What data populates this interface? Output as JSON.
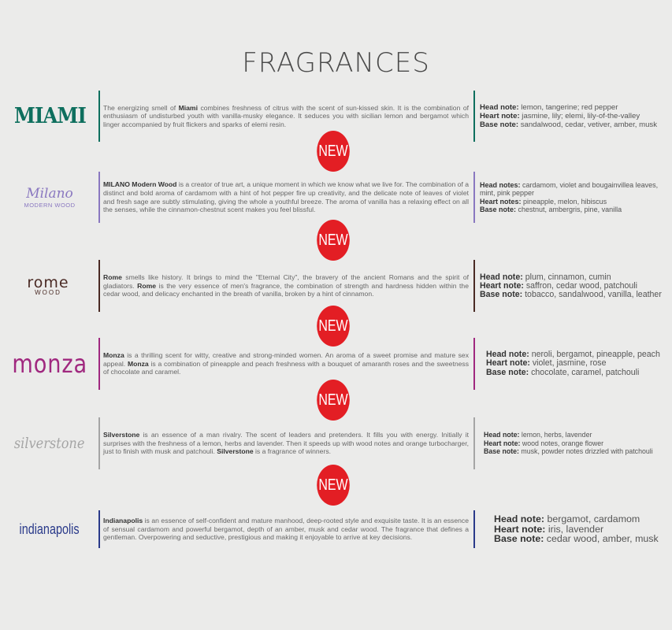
{
  "title": "FRAGRANCES",
  "badge": "NEW",
  "colors": {
    "miami": "#0e6f5e",
    "milano": "#8a78c0",
    "rome": "#4a2a24",
    "monza": "#a0287f",
    "silverstone": "#a5a5a5",
    "indianapolis": "#2a3a8a",
    "badge": "#e31e24"
  },
  "products": [
    {
      "logo": "MIAMI",
      "desc": [
        {
          "t": "The energizing smell of "
        },
        {
          "t": "Miami",
          "b": true
        },
        {
          "t": " combines freshness of citrus with the scent of sun-kissed skin. It is the combination of enthusiasm of undisturbed youth with vanilla-musky elegance. It seduces you with sicilian lemon and bergamot which linger accompanied by fruit flickers and sparks of elemi resin."
        }
      ],
      "notes": [
        {
          "label": "Head note:",
          "value": " lemon, tangerine; red pepper"
        },
        {
          "label": "Heart note:",
          "value": " jasmine, lily; elemi, lily-of-the-valley"
        },
        {
          "label": "Base note:",
          "value": " sandalwood, cedar, vetiver, amber, musk"
        }
      ]
    },
    {
      "logo": "Milano",
      "logo_sub": "MODERN WOOD",
      "desc": [
        {
          "t": "MILANO Modern Wood",
          "b": true
        },
        {
          "t": " is a creator of true art, a unique moment in which we know what we live for. The combination of a distinct and bold aroma of cardamom with a hint of hot pepper fire up creativity, and the delicate note of leaves of violet and fresh sage are subtly stimulating, giving the whole a youthful breeze. The aroma of vanilla has a relaxing effect on all the senses, while the cinnamon-chestnut scent makes you feel blissful."
        }
      ],
      "notes": [
        {
          "label": "Head notes:",
          "value": " cardamom, violet and bougainvillea leaves, mint, pink pepper"
        },
        {
          "label": "Heart notes:",
          "value": " pineapple, melon, hibiscus"
        },
        {
          "label": "Base note:",
          "value": " chestnut, ambergris, pine, vanilla"
        }
      ]
    },
    {
      "logo": "rome",
      "logo_sub": "WOOD",
      "desc": [
        {
          "t": "Rome",
          "b": true
        },
        {
          "t": " smells like history. It brings to mind the \"Eternal City\", the bravery of the ancient Romans and the spirit of gladiators. "
        },
        {
          "t": "Rome",
          "b": true
        },
        {
          "t": " is the very essence of men's fragrance, the combination of strength and hardness hidden within the cedar wood, and delicacy enchanted in the breath of vanilla, broken by a hint of cinnamon."
        }
      ],
      "notes": [
        {
          "label": "Head note:",
          "value": " plum, cinnamon, cumin"
        },
        {
          "label": "Heart note:",
          "value": " saffron, cedar wood, patchouli"
        },
        {
          "label": "Base note:",
          "value": " tobacco, sandalwood, vanilla, leather"
        }
      ]
    },
    {
      "logo": "monza",
      "desc": [
        {
          "t": "Monza",
          "b": true
        },
        {
          "t": " is a thrilling scent for witty, creative and strong-minded women. An aroma of a sweet promise and mature sex appeal. "
        },
        {
          "t": "Monza",
          "b": true
        },
        {
          "t": " is a combination of pineapple and peach freshness with a bouquet of amaranth roses and the sweetness of chocolate and caramel."
        }
      ],
      "notes": [
        {
          "label": "Head note:",
          "value": " neroli, bergamot, pineapple, peach"
        },
        {
          "label": "Heart note:",
          "value": " violet, jasmine, rose"
        },
        {
          "label": "Base note:",
          "value": " chocolate, caramel, patchouli"
        }
      ]
    },
    {
      "logo": "silverstone",
      "desc": [
        {
          "t": "Silverstone",
          "b": true
        },
        {
          "t": " is an essence of a man rivalry. The scent of leaders and pretenders. It fills you with energy. Initially it surprises with the freshness of a lemon, herbs and lavender. Then it speeds up with wood notes and orange turbocharger, just to finish with musk and patchouli. "
        },
        {
          "t": "Silverstone",
          "b": true
        },
        {
          "t": " is a fragrance of winners."
        }
      ],
      "notes": [
        {
          "label": "Head note:",
          "value": " lemon, herbs, lavender"
        },
        {
          "label": "Heart note:",
          "value": " wood notes, orange flower"
        },
        {
          "label": "Base note:",
          "value": " musk, powder notes drizzled with patchouli"
        }
      ]
    },
    {
      "logo": "indianapolis",
      "desc": [
        {
          "t": "Indianapolis",
          "b": true
        },
        {
          "t": " is an essence of self-confident and mature manhood, deep-rooted style and exquisite taste. It is an essence of sensual cardamom and powerful bergamot, depth of an amber, musk and cedar wood. The fragrance that defines a gentleman. Overpowering and seductive, prestigious and making it enjoyable to arrive at key decisions."
        }
      ],
      "notes": [
        {
          "label": "Head note:",
          "value": " bergamot, cardamom"
        },
        {
          "label": "Heart note:",
          "value": " iris, lavender"
        },
        {
          "label": "Base note:",
          "value": " cedar wood, amber, musk"
        }
      ]
    }
  ]
}
